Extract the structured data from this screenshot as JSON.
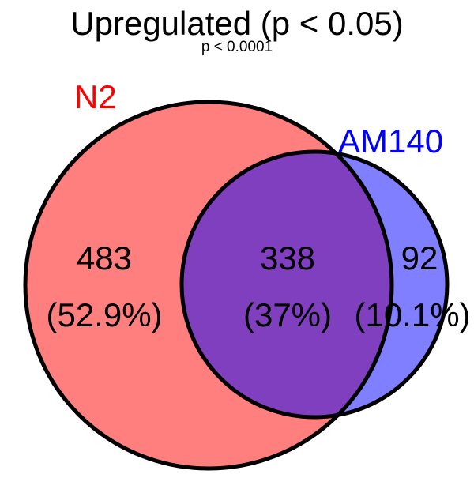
{
  "title": "Upregulated (p < 0.05)",
  "subtitle": "p < 0.0001",
  "colors": {
    "set_a_fill": "#ff7f7f",
    "set_b_fill": "#7f7fff",
    "overlap_fill": "#7f3fbf",
    "outline": "#000000",
    "set_a_label": "#ff0000",
    "set_b_label": "#0000ff",
    "text": "#000000"
  },
  "sets": [
    {
      "name": "N2",
      "label_color": "#ff0000"
    },
    {
      "name": "AM140",
      "label_color": "#0000ff"
    }
  ],
  "regions": [
    {
      "id": "n2-only",
      "count": "483",
      "percent": "(52.9%)"
    },
    {
      "id": "overlap",
      "count": "338",
      "percent": "(37%)"
    },
    {
      "id": "am140-only",
      "count": "92",
      "percent": "(10.1%)"
    }
  ]
}
